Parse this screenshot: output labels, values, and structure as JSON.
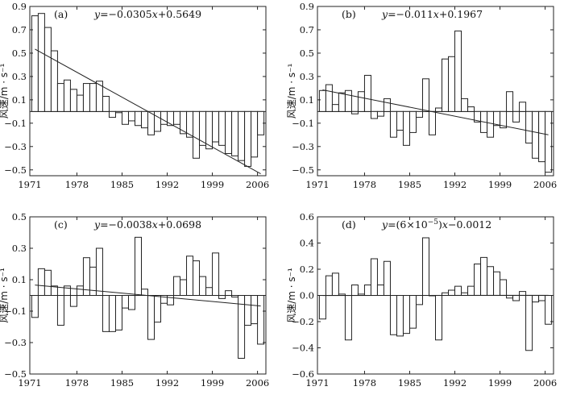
{
  "chart_data": [
    {
      "panel": "(a)",
      "type": "bar",
      "equation": "y=−0.0305x+0.5649",
      "eq_parts": {
        "y": "y",
        "rest": "=−0.0305",
        "x": "x",
        "tail": "+0.5649"
      },
      "ylabel": "风速/m · s⁻¹",
      "yticks": [
        "0.9",
        "0.7",
        "0.5",
        "0.3",
        "0.1",
        "−0.1",
        "−0.3",
        "−0.5"
      ],
      "ylim": [
        -0.55,
        0.9
      ],
      "xticks": [
        "1971",
        "1978",
        "1985",
        "1992",
        "1999",
        "2006"
      ],
      "years": [
        1971,
        1972,
        1973,
        1974,
        1975,
        1976,
        1977,
        1978,
        1979,
        1980,
        1981,
        1982,
        1983,
        1984,
        1985,
        1986,
        1987,
        1988,
        1989,
        1990,
        1991,
        1992,
        1993,
        1994,
        1995,
        1996,
        1997,
        1998,
        1999,
        2000,
        2001,
        2002,
        2003,
        2004,
        2005,
        2006
      ],
      "values": [
        0.82,
        0.84,
        0.72,
        0.52,
        0.24,
        0.27,
        0.19,
        0.14,
        0.24,
        0.24,
        0.26,
        0.13,
        -0.05,
        -0.01,
        -0.11,
        -0.08,
        -0.12,
        -0.14,
        -0.2,
        -0.17,
        -0.11,
        -0.12,
        -0.11,
        -0.19,
        -0.22,
        -0.4,
        -0.29,
        -0.32,
        -0.26,
        -0.29,
        -0.36,
        -0.38,
        -0.42,
        -0.47,
        -0.39,
        -0.2
      ],
      "trend": {
        "slope": -0.0305,
        "intercept": 0.5649
      }
    },
    {
      "panel": "(b)",
      "type": "bar",
      "equation": "y=−0.011x+0.1967",
      "eq_parts": {
        "y": "y",
        "rest": "=−0.011",
        "x": "x",
        "tail": "+0.1967"
      },
      "ylabel": "风速/m · s⁻¹",
      "yticks": [
        "0.9",
        "0.7",
        "0.5",
        "0.3",
        "0.1",
        "−0.1",
        "−0.3",
        "−0.5"
      ],
      "ylim": [
        -0.55,
        0.9
      ],
      "xticks": [
        "1971",
        "1978",
        "1985",
        "1992",
        "1999",
        "2006"
      ],
      "years": [
        1971,
        1972,
        1973,
        1974,
        1975,
        1976,
        1977,
        1978,
        1979,
        1980,
        1981,
        1982,
        1983,
        1984,
        1985,
        1986,
        1987,
        1988,
        1989,
        1990,
        1991,
        1992,
        1993,
        1994,
        1995,
        1996,
        1997,
        1998,
        1999,
        2000,
        2001,
        2002,
        2003,
        2004,
        2005,
        2006
      ],
      "values": [
        0.18,
        0.23,
        0.06,
        0.16,
        0.18,
        -0.02,
        0.17,
        0.31,
        -0.06,
        -0.04,
        0.11,
        -0.22,
        -0.16,
        -0.29,
        -0.18,
        -0.05,
        0.28,
        -0.2,
        0.03,
        0.45,
        0.47,
        0.69,
        0.11,
        0.04,
        -0.09,
        -0.18,
        -0.22,
        -0.12,
        -0.14,
        0.17,
        -0.09,
        0.08,
        -0.27,
        -0.4,
        -0.43,
        -0.52
      ],
      "trend": {
        "slope": -0.011,
        "intercept": 0.1967
      }
    },
    {
      "panel": "(c)",
      "type": "bar",
      "equation": "y=−0.0038x+0.0698",
      "eq_parts": {
        "y": "y",
        "rest": "=−0.0038",
        "x": "x",
        "tail": "+0.0698"
      },
      "ylabel": "风速/m · s⁻¹",
      "yticks": [
        "0.5",
        "0.3",
        "0.1",
        "−0.1",
        "−0.3",
        "−0.5"
      ],
      "ylim": [
        -0.5,
        0.5
      ],
      "xticks": [
        "1971",
        "1978",
        "1985",
        "1992",
        "1999",
        "2006"
      ],
      "years": [
        1971,
        1972,
        1973,
        1974,
        1975,
        1976,
        1977,
        1978,
        1979,
        1980,
        1981,
        1982,
        1983,
        1984,
        1985,
        1986,
        1987,
        1988,
        1989,
        1990,
        1991,
        1992,
        1993,
        1994,
        1995,
        1996,
        1997,
        1998,
        1999,
        2000,
        2001,
        2002,
        2003,
        2004,
        2005,
        2006
      ],
      "values": [
        -0.14,
        0.17,
        0.16,
        0.06,
        -0.19,
        0.06,
        -0.07,
        0.06,
        0.24,
        0.18,
        0.3,
        -0.23,
        -0.23,
        -0.22,
        -0.08,
        -0.09,
        0.37,
        0.04,
        -0.28,
        -0.17,
        -0.05,
        -0.06,
        0.12,
        0.1,
        0.25,
        0.22,
        0.12,
        0.05,
        0.27,
        -0.02,
        0.03,
        -0.01,
        -0.4,
        -0.19,
        -0.18,
        -0.31
      ],
      "trend": {
        "slope": -0.0038,
        "intercept": 0.0698
      }
    },
    {
      "panel": "(d)",
      "type": "bar",
      "equation": "y=(6×10⁻⁵)x−0.0012",
      "eq_parts": {
        "y": "y",
        "rest": "=(6×10",
        "sup": "−5",
        "close": ")",
        "x": "x",
        "tail": "−0.0012"
      },
      "ylabel": "风速/m · s⁻¹",
      "yticks": [
        "0.6",
        "0.4",
        "0.2",
        "0.0",
        "−0.2",
        "−0.4",
        "−0.6"
      ],
      "ylim": [
        -0.6,
        0.6
      ],
      "xticks": [
        "1971",
        "1978",
        "1985",
        "1992",
        "1999",
        "2006"
      ],
      "years": [
        1971,
        1972,
        1973,
        1974,
        1975,
        1976,
        1977,
        1978,
        1979,
        1980,
        1981,
        1982,
        1983,
        1984,
        1985,
        1986,
        1987,
        1988,
        1989,
        1990,
        1991,
        1992,
        1993,
        1994,
        1995,
        1996,
        1997,
        1998,
        1999,
        2000,
        2001,
        2002,
        2003,
        2004,
        2005,
        2006
      ],
      "values": [
        -0.18,
        0.15,
        0.17,
        0.01,
        -0.34,
        0.08,
        0.01,
        0.08,
        0.28,
        0.08,
        0.26,
        -0.3,
        -0.31,
        -0.29,
        -0.25,
        -0.07,
        0.44,
        0.0,
        -0.34,
        0.02,
        0.04,
        0.07,
        0.02,
        0.07,
        0.24,
        0.29,
        0.22,
        0.18,
        0.12,
        -0.02,
        -0.04,
        0.03,
        -0.42,
        -0.05,
        -0.04,
        -0.22
      ],
      "trend": {
        "slope": 6e-05,
        "intercept": -0.0012
      }
    }
  ]
}
